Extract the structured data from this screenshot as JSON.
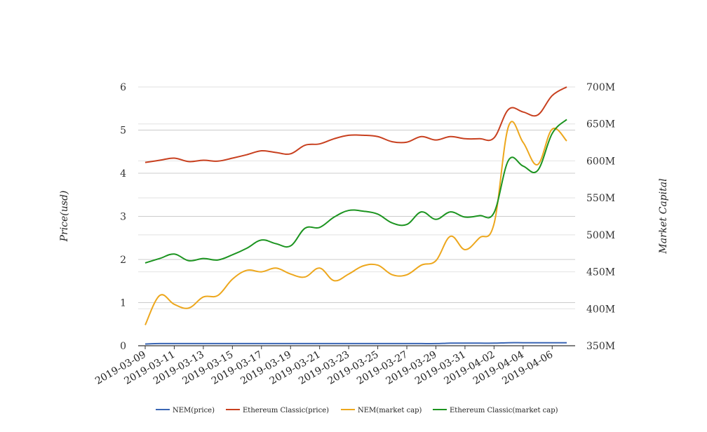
{
  "chart_data": {
    "type": "line",
    "x": [
      "2019-03-09",
      "2019-03-10",
      "2019-03-11",
      "2019-03-12",
      "2019-03-13",
      "2019-03-14",
      "2019-03-15",
      "2019-03-16",
      "2019-03-17",
      "2019-03-18",
      "2019-03-19",
      "2019-03-20",
      "2019-03-21",
      "2019-03-22",
      "2019-03-23",
      "2019-03-24",
      "2019-03-25",
      "2019-03-26",
      "2019-03-27",
      "2019-03-28",
      "2019-03-29",
      "2019-03-30",
      "2019-03-31",
      "2019-04-01",
      "2019-04-02",
      "2019-04-03",
      "2019-04-04",
      "2019-04-05",
      "2019-04-06",
      "2019-04-07"
    ],
    "x_tick_labels": [
      "2019-03-09",
      "2019-03-11",
      "2019-03-13",
      "2019-03-15",
      "2019-03-17",
      "2019-03-19",
      "2019-03-21",
      "2019-03-23",
      "2019-03-25",
      "2019-03-27",
      "2019-03-29",
      "2019-03-31",
      "2019-04-02",
      "2019-04-04",
      "2019-04-06"
    ],
    "y_left": {
      "label": "Price(usd)",
      "range": [
        0,
        6
      ],
      "ticks": [
        "0",
        "1",
        "2",
        "3",
        "4",
        "5",
        "6"
      ]
    },
    "y_right": {
      "label": "Market Capital",
      "range": [
        350000000,
        700000000
      ],
      "ticks": [
        "350M",
        "400M",
        "450M",
        "500M",
        "550M",
        "600M",
        "650M",
        "700M"
      ]
    },
    "grid": true,
    "legend_position": "bottom",
    "series": [
      {
        "name": "NEM(price)",
        "axis": "left",
        "color": "#3a66b5",
        "values": [
          0.04,
          0.05,
          0.05,
          0.05,
          0.05,
          0.05,
          0.05,
          0.05,
          0.05,
          0.05,
          0.05,
          0.05,
          0.05,
          0.05,
          0.05,
          0.05,
          0.05,
          0.05,
          0.05,
          0.05,
          0.05,
          0.06,
          0.06,
          0.06,
          0.06,
          0.07,
          0.07,
          0.07,
          0.07,
          0.07
        ]
      },
      {
        "name": "Ethereum Classic(price)",
        "axis": "left",
        "color": "#c8401f",
        "values": [
          4.25,
          4.3,
          4.35,
          4.27,
          4.3,
          4.28,
          4.35,
          4.43,
          4.52,
          4.48,
          4.45,
          4.65,
          4.68,
          4.8,
          4.88,
          4.88,
          4.85,
          4.73,
          4.72,
          4.85,
          4.77,
          4.85,
          4.8,
          4.8,
          4.82,
          5.48,
          5.42,
          5.35,
          5.8,
          6.0
        ]
      },
      {
        "name": "NEM(market cap)",
        "axis": "right",
        "color": "#eda71d",
        "values": [
          378000000,
          418000000,
          406000000,
          401000000,
          416000000,
          418000000,
          440000000,
          452000000,
          450000000,
          455000000,
          447000000,
          443000000,
          455000000,
          438000000,
          447000000,
          458000000,
          459000000,
          446000000,
          446000000,
          459000000,
          465000000,
          498000000,
          480000000,
          496000000,
          515000000,
          647000000,
          625000000,
          595000000,
          643000000,
          627000000
        ]
      },
      {
        "name": "Ethereum Classic(market cap)",
        "axis": "right",
        "color": "#1c9420",
        "values": [
          462000000,
          468000000,
          474000000,
          465000000,
          468000000,
          466000000,
          473000000,
          482000000,
          493000000,
          488000000,
          485000000,
          509000000,
          510000000,
          524000000,
          533000000,
          532000000,
          528000000,
          516000000,
          514000000,
          531000000,
          521000000,
          531000000,
          524000000,
          526000000,
          530000000,
          601000000,
          593000000,
          587000000,
          637000000,
          656000000
        ]
      }
    ]
  }
}
